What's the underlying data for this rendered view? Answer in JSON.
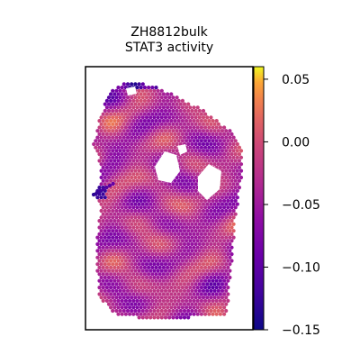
{
  "chart_data": {
    "type": "heatmap",
    "title_line1": "ZH8812bulk",
    "title_line2": "STAT3 activity",
    "colormap": "plasma",
    "colorbar": {
      "min": -0.15,
      "max": 0.06,
      "ticks": [
        0.05,
        0.0,
        -0.05,
        -0.1,
        -0.15
      ],
      "tick_labels": [
        "0.05",
        "0.00",
        "−0.05",
        "−0.10",
        "−0.15"
      ]
    },
    "grid": false
  },
  "colors": {
    "frame": "#000000",
    "background": "#ffffff"
  }
}
